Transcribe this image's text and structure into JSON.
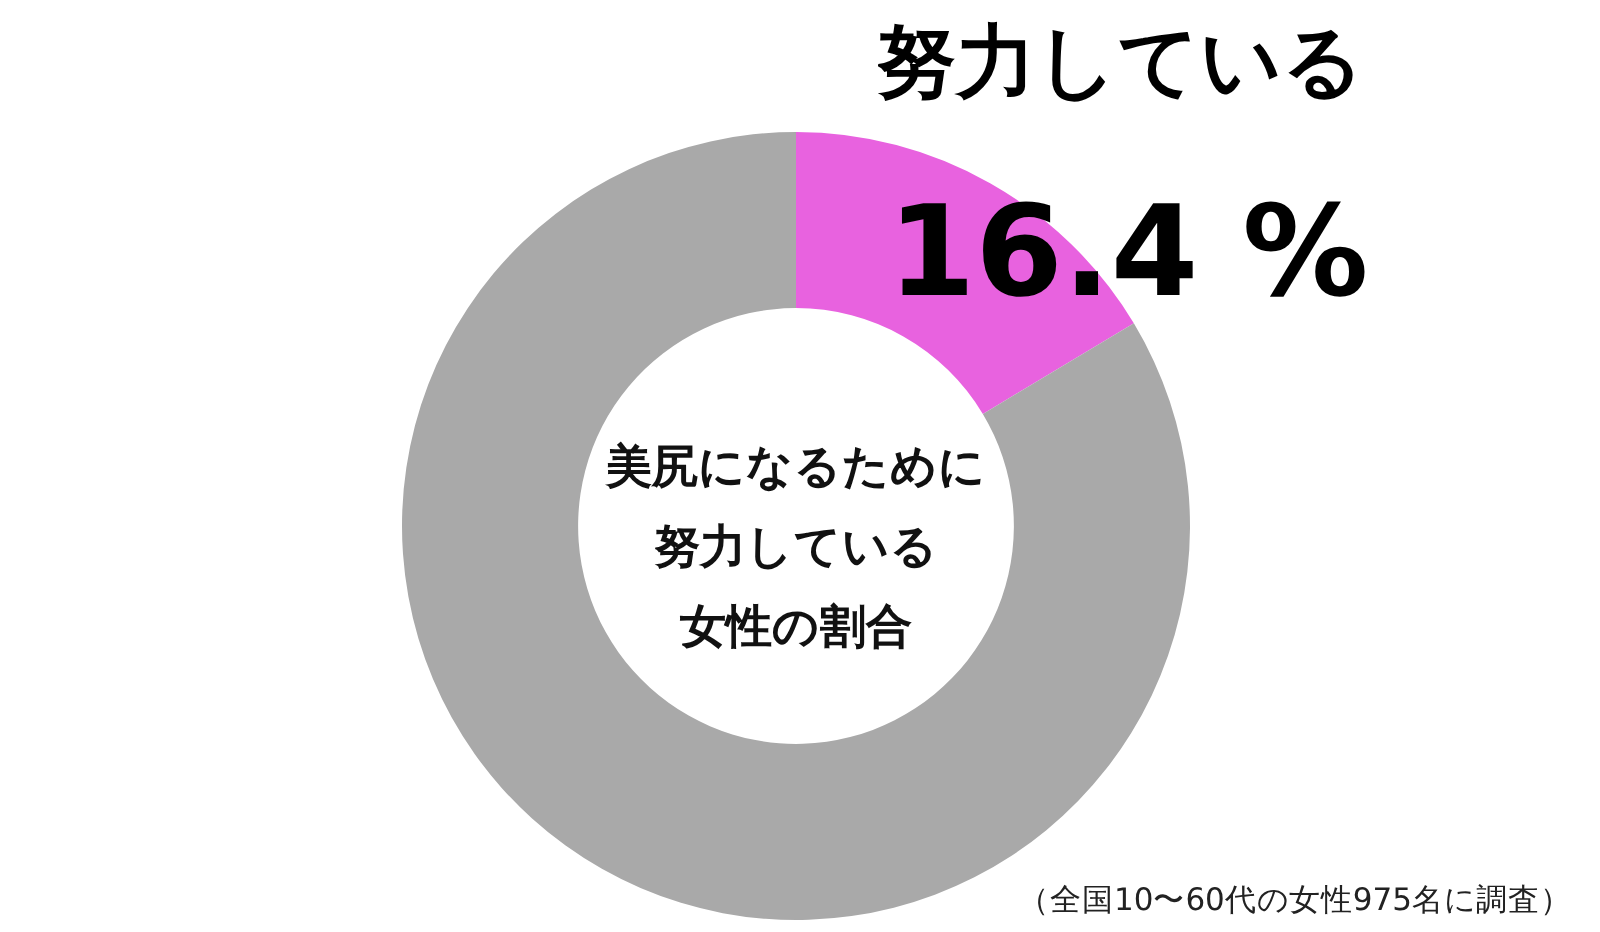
{
  "chart_data": {
    "type": "donut",
    "title": "美尻になるために努力している女性の割合",
    "categories": [
      "努力している",
      null
    ],
    "values": [
      16.4,
      83.6
    ],
    "colors": [
      "#e862df",
      "#a9a9a9"
    ],
    "value_labels": [
      "16.4 %",
      null
    ],
    "annotations": [
      "（全国10〜60代の女性975名に調査）"
    ]
  }
}
